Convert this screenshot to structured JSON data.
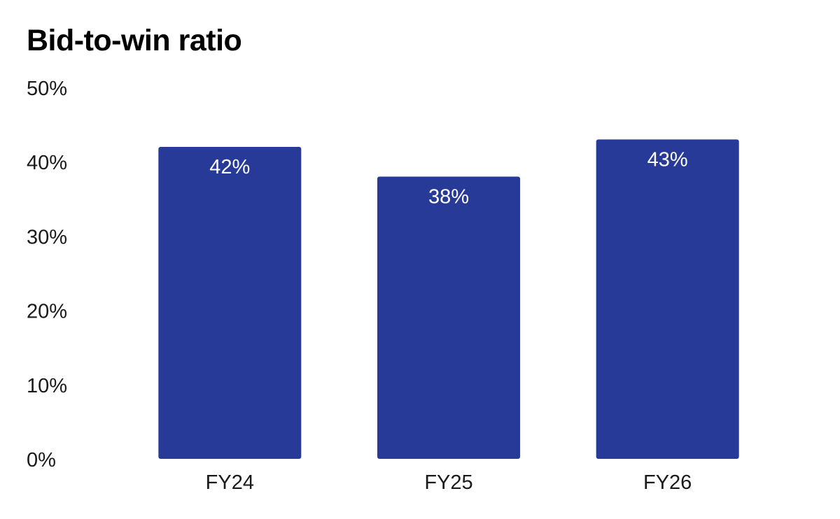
{
  "chart_data": {
    "type": "bar",
    "title": "Bid-to-win ratio",
    "xlabel": "",
    "ylabel": "",
    "categories": [
      "FY24",
      "FY25",
      "FY26"
    ],
    "values": [
      42,
      38,
      43
    ],
    "data_labels": [
      "42%",
      "38%",
      "43%"
    ],
    "ylim": [
      0,
      50
    ],
    "y_ticks": [
      0,
      10,
      20,
      30,
      40,
      50
    ],
    "y_tick_labels": [
      "0%",
      "10%",
      "20%",
      "30%",
      "40%",
      "50%"
    ],
    "grid": false,
    "legend": "none",
    "bar_color": "#283a97"
  }
}
